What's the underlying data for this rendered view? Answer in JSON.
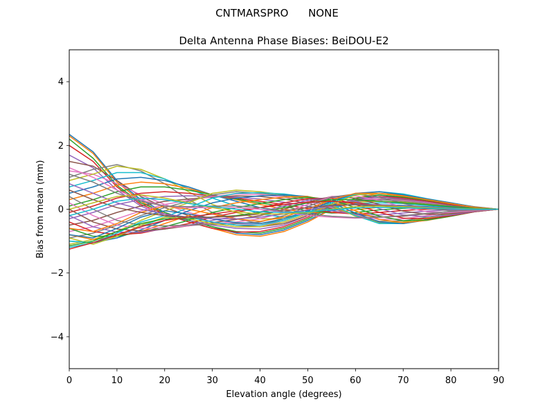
{
  "chart_data": {
    "type": "line",
    "suptitle": "CNTMARSPRO      NONE",
    "title": "Delta Antenna Phase Biases: BeiDOU-E2",
    "xlabel": "Elevation angle (degrees)",
    "ylabel": "Bias from mean (mm)",
    "xlim": [
      0,
      90
    ],
    "ylim": [
      -5,
      5
    ],
    "xticks": [
      0,
      10,
      20,
      30,
      40,
      50,
      60,
      70,
      80,
      90
    ],
    "yticks": [
      -4,
      -2,
      0,
      2,
      4
    ],
    "ytick_labels": [
      "−4",
      "−2",
      "0",
      "2",
      "4"
    ],
    "grid": false,
    "legend": "none",
    "colors": [
      "#1f77b4",
      "#ff7f0e",
      "#2ca02c",
      "#d62728",
      "#9467bd",
      "#8c564b",
      "#e377c2",
      "#7f7f7f",
      "#bcbd22",
      "#17becf"
    ],
    "x": [
      0,
      5,
      10,
      15,
      20,
      25,
      30,
      35,
      40,
      45,
      50,
      55,
      60,
      65,
      70,
      75,
      80,
      85,
      90
    ],
    "series": [
      {
        "values": [
          2.35,
          1.8,
          0.9,
          0.3,
          -0.1,
          -0.35,
          -0.55,
          -0.75,
          -0.8,
          -0.65,
          -0.35,
          0.0,
          0.3,
          0.45,
          0.35,
          0.25,
          0.15,
          0.05,
          0.0
        ]
      },
      {
        "values": [
          2.3,
          1.75,
          0.85,
          0.25,
          -0.15,
          -0.4,
          -0.6,
          -0.8,
          -0.85,
          -0.7,
          -0.4,
          0.0,
          0.35,
          0.5,
          0.4,
          0.3,
          0.18,
          0.08,
          0.0
        ]
      },
      {
        "values": [
          2.2,
          1.6,
          0.75,
          0.2,
          -0.1,
          -0.35,
          -0.55,
          -0.7,
          -0.75,
          -0.6,
          -0.3,
          0.05,
          0.35,
          0.45,
          0.38,
          0.28,
          0.16,
          0.06,
          0.0
        ]
      },
      {
        "values": [
          2.0,
          1.5,
          0.7,
          0.15,
          -0.15,
          -0.4,
          -0.6,
          -0.72,
          -0.7,
          -0.55,
          -0.25,
          0.08,
          0.3,
          0.4,
          0.35,
          0.25,
          0.14,
          0.05,
          0.0
        ]
      },
      {
        "values": [
          1.7,
          1.3,
          0.6,
          0.1,
          -0.2,
          -0.35,
          -0.5,
          -0.6,
          -0.62,
          -0.5,
          -0.2,
          0.1,
          0.3,
          0.38,
          0.32,
          0.22,
          0.12,
          0.04,
          0.0
        ]
      },
      {
        "values": [
          1.5,
          1.35,
          0.9,
          0.4,
          0.05,
          -0.2,
          -0.4,
          -0.5,
          -0.55,
          -0.45,
          -0.2,
          0.1,
          0.28,
          0.33,
          0.3,
          0.2,
          0.12,
          0.04,
          0.0
        ]
      },
      {
        "values": [
          1.2,
          1.1,
          0.8,
          0.45,
          0.15,
          -0.1,
          -0.3,
          -0.45,
          -0.5,
          -0.4,
          -0.15,
          0.12,
          0.3,
          0.32,
          0.28,
          0.2,
          0.1,
          0.03,
          0.0
        ]
      },
      {
        "values": [
          1.0,
          1.25,
          1.4,
          1.2,
          0.8,
          0.3,
          -0.1,
          -0.3,
          -0.45,
          -0.35,
          -0.1,
          0.15,
          0.25,
          0.3,
          0.25,
          0.18,
          0.1,
          0.03,
          0.0
        ]
      },
      {
        "values": [
          0.9,
          1.1,
          1.35,
          1.25,
          0.95,
          0.55,
          0.15,
          -0.1,
          -0.3,
          -0.3,
          -0.1,
          0.1,
          0.22,
          0.25,
          0.22,
          0.15,
          0.08,
          0.02,
          0.0
        ]
      },
      {
        "values": [
          0.7,
          0.9,
          1.15,
          1.15,
          0.95,
          0.65,
          0.35,
          0.1,
          -0.15,
          -0.25,
          -0.15,
          0.05,
          0.18,
          0.2,
          0.18,
          0.12,
          0.06,
          0.02,
          0.0
        ]
      },
      {
        "values": [
          0.5,
          0.7,
          0.95,
          1.0,
          0.9,
          0.7,
          0.45,
          0.25,
          0.05,
          -0.1,
          -0.15,
          -0.05,
          0.08,
          0.14,
          0.12,
          0.08,
          0.04,
          0.01,
          0.0
        ]
      },
      {
        "values": [
          0.3,
          0.5,
          0.75,
          0.85,
          0.8,
          0.65,
          0.45,
          0.3,
          0.15,
          0.0,
          -0.1,
          -0.1,
          -0.02,
          0.06,
          0.08,
          0.05,
          0.03,
          0.01,
          0.0
        ]
      },
      {
        "values": [
          0.1,
          0.3,
          0.55,
          0.7,
          0.7,
          0.6,
          0.45,
          0.32,
          0.2,
          0.08,
          -0.05,
          -0.12,
          -0.1,
          -0.02,
          0.03,
          0.03,
          0.02,
          0.01,
          0.0
        ]
      },
      {
        "values": [
          -0.1,
          0.1,
          0.35,
          0.5,
          0.55,
          0.5,
          0.42,
          0.35,
          0.25,
          0.15,
          0.02,
          -0.1,
          -0.15,
          -0.1,
          -0.04,
          0.0,
          0.0,
          0.0,
          0.0
        ]
      },
      {
        "values": [
          -0.3,
          -0.1,
          0.15,
          0.3,
          0.4,
          0.42,
          0.4,
          0.38,
          0.32,
          0.22,
          0.1,
          -0.05,
          -0.15,
          -0.18,
          -0.12,
          -0.06,
          -0.02,
          0.0,
          0.0
        ]
      },
      {
        "values": [
          -0.5,
          -0.35,
          -0.1,
          0.1,
          0.25,
          0.32,
          0.38,
          0.42,
          0.4,
          0.32,
          0.18,
          0.02,
          -0.15,
          -0.25,
          -0.22,
          -0.14,
          -0.07,
          -0.02,
          0.0
        ]
      },
      {
        "values": [
          -0.7,
          -0.55,
          -0.3,
          -0.05,
          0.15,
          0.28,
          0.4,
          0.48,
          0.46,
          0.38,
          0.25,
          0.05,
          -0.18,
          -0.32,
          -0.3,
          -0.2,
          -0.1,
          -0.03,
          0.0
        ]
      },
      {
        "values": [
          -0.9,
          -0.75,
          -0.5,
          -0.2,
          0.05,
          0.25,
          0.45,
          0.55,
          0.5,
          0.42,
          0.3,
          0.08,
          -0.2,
          -0.38,
          -0.36,
          -0.25,
          -0.13,
          -0.04,
          0.0
        ]
      },
      {
        "values": [
          -1.1,
          -0.95,
          -0.7,
          -0.35,
          -0.05,
          0.2,
          0.5,
          0.6,
          0.55,
          0.45,
          0.35,
          0.12,
          -0.22,
          -0.42,
          -0.4,
          -0.28,
          -0.15,
          -0.05,
          0.0
        ]
      },
      {
        "values": [
          -1.2,
          -1.05,
          -0.85,
          -0.55,
          -0.25,
          0.05,
          0.35,
          0.5,
          0.52,
          0.48,
          0.38,
          0.15,
          -0.2,
          -0.45,
          -0.45,
          -0.32,
          -0.18,
          -0.06,
          0.0
        ]
      },
      {
        "values": [
          -1.0,
          -1.05,
          -0.9,
          -0.65,
          -0.35,
          -0.05,
          0.2,
          0.35,
          0.42,
          0.45,
          0.4,
          0.2,
          -0.12,
          -0.4,
          -0.45,
          -0.34,
          -0.2,
          -0.07,
          0.0
        ]
      },
      {
        "values": [
          -0.8,
          -0.95,
          -0.85,
          -0.7,
          -0.45,
          -0.2,
          0.05,
          0.2,
          0.3,
          0.38,
          0.4,
          0.25,
          -0.05,
          -0.32,
          -0.42,
          -0.35,
          -0.22,
          -0.08,
          0.0
        ]
      },
      {
        "values": [
          -0.6,
          -0.85,
          -0.85,
          -0.72,
          -0.55,
          -0.35,
          -0.1,
          0.05,
          0.18,
          0.3,
          0.38,
          0.3,
          0.05,
          -0.22,
          -0.36,
          -0.34,
          -0.22,
          -0.08,
          0.0
        ]
      },
      {
        "values": [
          -0.4,
          -0.7,
          -0.8,
          -0.75,
          -0.6,
          -0.45,
          -0.25,
          -0.1,
          0.05,
          0.2,
          0.33,
          0.35,
          0.15,
          -0.1,
          -0.28,
          -0.3,
          -0.2,
          -0.08,
          0.0
        ]
      },
      {
        "values": [
          -0.2,
          -0.55,
          -0.72,
          -0.72,
          -0.62,
          -0.5,
          -0.35,
          -0.22,
          -0.08,
          0.1,
          0.28,
          0.38,
          0.25,
          0.02,
          -0.18,
          -0.24,
          -0.18,
          -0.07,
          0.0
        ]
      },
      {
        "values": [
          0.0,
          -0.4,
          -0.62,
          -0.68,
          -0.62,
          -0.52,
          -0.42,
          -0.32,
          -0.2,
          0.0,
          0.22,
          0.4,
          0.35,
          0.15,
          -0.06,
          -0.16,
          -0.14,
          -0.06,
          0.0
        ]
      },
      {
        "values": [
          0.2,
          -0.2,
          -0.5,
          -0.6,
          -0.58,
          -0.52,
          -0.45,
          -0.4,
          -0.3,
          -0.1,
          0.15,
          0.4,
          0.42,
          0.28,
          0.06,
          -0.08,
          -0.1,
          -0.05,
          0.0
        ]
      },
      {
        "values": [
          0.4,
          0.0,
          -0.35,
          -0.5,
          -0.52,
          -0.5,
          -0.48,
          -0.45,
          -0.4,
          -0.2,
          0.08,
          0.38,
          0.48,
          0.38,
          0.18,
          0.02,
          -0.05,
          -0.03,
          0.0
        ]
      },
      {
        "values": [
          -0.9,
          -1.1,
          -0.85,
          -0.5,
          -0.25,
          -0.3,
          -0.45,
          -0.55,
          -0.55,
          -0.4,
          -0.15,
          0.15,
          0.45,
          0.5,
          0.45,
          0.3,
          0.18,
          0.06,
          0.0
        ]
      },
      {
        "values": [
          -1.0,
          -1.05,
          -0.75,
          -0.4,
          -0.2,
          -0.25,
          -0.4,
          -0.5,
          -0.5,
          -0.35,
          -0.1,
          0.2,
          0.48,
          0.55,
          0.48,
          0.33,
          0.2,
          0.07,
          0.0
        ]
      },
      {
        "values": [
          -0.8,
          -0.9,
          -0.6,
          -0.25,
          -0.05,
          -0.15,
          -0.3,
          -0.42,
          -0.45,
          -0.3,
          -0.05,
          0.25,
          0.5,
          0.55,
          0.45,
          0.32,
          0.2,
          0.07,
          0.0
        ]
      },
      {
        "values": [
          -0.6,
          -0.7,
          -0.45,
          -0.1,
          0.1,
          0.0,
          -0.15,
          -0.3,
          -0.38,
          -0.25,
          0.0,
          0.3,
          0.5,
          0.5,
          0.42,
          0.3,
          0.18,
          0.06,
          0.0
        ]
      },
      {
        "values": [
          -1.15,
          -1.0,
          -0.7,
          -0.45,
          -0.3,
          -0.3,
          -0.25,
          -0.2,
          -0.1,
          0.05,
          0.2,
          0.3,
          0.3,
          0.25,
          0.2,
          0.14,
          0.08,
          0.03,
          0.0
        ]
      },
      {
        "values": [
          -1.25,
          -1.05,
          -0.8,
          -0.55,
          -0.35,
          -0.25,
          -0.15,
          -0.05,
          0.05,
          0.15,
          0.22,
          0.25,
          0.2,
          0.12,
          0.06,
          0.03,
          0.01,
          0.0,
          0.0
        ]
      },
      {
        "values": [
          0.8,
          0.5,
          0.2,
          0.0,
          -0.15,
          -0.25,
          -0.3,
          -0.3,
          -0.25,
          -0.15,
          -0.02,
          0.1,
          0.15,
          0.14,
          0.1,
          0.06,
          0.03,
          0.01,
          0.0
        ]
      },
      {
        "values": [
          0.6,
          0.3,
          0.05,
          -0.1,
          -0.2,
          -0.25,
          -0.25,
          -0.22,
          -0.15,
          -0.05,
          0.05,
          0.12,
          0.14,
          0.12,
          0.08,
          0.05,
          0.02,
          0.01,
          0.0
        ]
      },
      {
        "values": [
          1.3,
          1.0,
          0.6,
          0.3,
          0.1,
          0.05,
          0.05,
          0.05,
          0.0,
          -0.1,
          -0.2,
          -0.25,
          -0.28,
          -0.26,
          -0.2,
          -0.13,
          -0.07,
          -0.02,
          0.0
        ]
      },
      {
        "values": [
          1.1,
          0.85,
          0.5,
          0.25,
          0.1,
          0.08,
          0.1,
          0.1,
          0.05,
          -0.05,
          -0.15,
          -0.22,
          -0.26,
          -0.25,
          -0.2,
          -0.13,
          -0.07,
          -0.02,
          0.0
        ]
      },
      {
        "values": [
          0.0,
          0.2,
          0.4,
          0.45,
          0.35,
          0.2,
          0.05,
          -0.08,
          -0.15,
          -0.15,
          -0.1,
          0.0,
          0.08,
          0.1,
          0.08,
          0.05,
          0.02,
          0.01,
          0.0
        ]
      },
      {
        "values": [
          -0.2,
          0.0,
          0.25,
          0.35,
          0.3,
          0.18,
          0.08,
          0.0,
          -0.08,
          -0.1,
          -0.08,
          -0.02,
          0.04,
          0.06,
          0.05,
          0.03,
          0.01,
          0.0,
          0.0
        ]
      }
    ]
  }
}
